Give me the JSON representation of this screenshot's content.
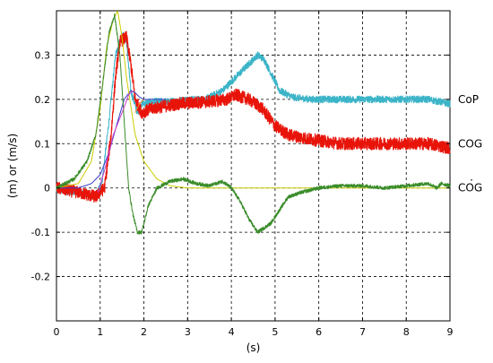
{
  "chart_data": {
    "type": "line",
    "xlabel": "(s)",
    "ylabel": "(m) or (m/s)",
    "xlim": [
      0,
      9
    ],
    "ylim": [
      -0.3,
      0.4
    ],
    "grid": true,
    "x_ticks": [
      "0",
      "1",
      "2",
      "3",
      "4",
      "5",
      "6",
      "7",
      "8",
      "9"
    ],
    "y_ticks": [
      "-0.2",
      "-0.1",
      "0",
      "0.1",
      "0.2",
      "0.3"
    ],
    "x_tick_values": [
      0,
      1,
      2,
      3,
      4,
      5,
      6,
      7,
      8,
      9
    ],
    "y_tick_values": [
      -0.2,
      -0.1,
      0,
      0.1,
      0.2,
      0.3
    ],
    "labels": [
      {
        "text": "CoP",
        "y": 0.2
      },
      {
        "text": "COG",
        "y": 0.1
      },
      {
        "text": "COG",
        "y": 0.0,
        "dot": "."
      }
    ],
    "series": [
      {
        "key": "cop",
        "color": "#3cb4c8",
        "noise": 0.008,
        "x": [
          0,
          0.5,
          0.9,
          1.05,
          1.2,
          1.35,
          1.5,
          1.6,
          1.7,
          1.85,
          1.95,
          2.2,
          2.6,
          3.0,
          3.4,
          3.8,
          4.1,
          4.4,
          4.6,
          4.75,
          4.9,
          5.1,
          5.4,
          5.8,
          6.5,
          7.5,
          8.5,
          9.0
        ],
        "y": [
          -0.005,
          -0.01,
          -0.02,
          0.02,
          0.15,
          0.3,
          0.35,
          0.33,
          0.22,
          0.17,
          0.19,
          0.195,
          0.195,
          0.2,
          0.2,
          0.22,
          0.25,
          0.28,
          0.3,
          0.29,
          0.26,
          0.22,
          0.205,
          0.2,
          0.2,
          0.2,
          0.2,
          0.19
        ]
      },
      {
        "key": "cog_red",
        "color": "#e8140a",
        "noise": 0.014,
        "x": [
          0,
          0.5,
          0.9,
          1.1,
          1.25,
          1.35,
          1.45,
          1.6,
          1.7,
          1.8,
          1.95,
          2.2,
          2.8,
          3.5,
          3.9,
          4.1,
          4.4,
          4.7,
          5.0,
          5.3,
          5.8,
          6.5,
          7.5,
          8.5,
          9.0
        ],
        "y": [
          0,
          -0.01,
          -0.02,
          0.0,
          0.12,
          0.25,
          0.33,
          0.34,
          0.28,
          0.2,
          0.17,
          0.18,
          0.19,
          0.195,
          0.2,
          0.21,
          0.2,
          0.18,
          0.14,
          0.12,
          0.11,
          0.1,
          0.1,
          0.1,
          0.09
        ]
      },
      {
        "key": "cog_smooth",
        "color": "#3c3cc8",
        "noise": 0,
        "x": [
          0,
          0.5,
          0.8,
          1.0,
          1.2,
          1.4,
          1.55,
          1.7,
          1.8,
          1.9,
          2.0,
          2.2,
          2.5
        ],
        "y": [
          0,
          0.0,
          0.01,
          0.03,
          0.08,
          0.15,
          0.2,
          0.22,
          0.215,
          0.205,
          0.2,
          0.2,
          0.2
        ]
      },
      {
        "key": "cog_dot",
        "color": "#cccc00",
        "noise": 0,
        "x": [
          0,
          0.5,
          0.8,
          1.0,
          1.15,
          1.3,
          1.4,
          1.5,
          1.6,
          1.8,
          2.0,
          2.3,
          2.6,
          3.0,
          4.0,
          9.0
        ],
        "y": [
          0,
          0.01,
          0.06,
          0.18,
          0.32,
          0.38,
          0.4,
          0.34,
          0.25,
          0.12,
          0.06,
          0.02,
          0.005,
          0.0,
          0.0,
          0.0
        ]
      },
      {
        "key": "cog_vel",
        "color": "#3a8c2a",
        "noise": 0.004,
        "x": [
          0,
          0.4,
          0.7,
          0.9,
          1.05,
          1.2,
          1.33,
          1.45,
          1.55,
          1.65,
          1.75,
          1.85,
          1.95,
          2.1,
          2.3,
          2.6,
          2.9,
          3.2,
          3.5,
          3.8,
          4.0,
          4.2,
          4.4,
          4.6,
          4.75,
          4.9,
          5.1,
          5.3,
          5.6,
          6.0,
          6.5,
          7.0,
          7.5,
          8.0,
          8.5,
          8.7,
          8.8,
          9.0
        ],
        "y": [
          0,
          0.02,
          0.06,
          0.12,
          0.23,
          0.35,
          0.39,
          0.3,
          0.15,
          0.0,
          -0.06,
          -0.1,
          -0.1,
          -0.04,
          0.0,
          0.015,
          0.02,
          0.01,
          0.005,
          0.015,
          0.0,
          -0.03,
          -0.07,
          -0.1,
          -0.09,
          -0.08,
          -0.05,
          -0.02,
          -0.01,
          0.0,
          0.005,
          0.005,
          0.0,
          0.005,
          0.01,
          0.0,
          0.01,
          0.005
        ]
      },
      {
        "key": "magenta",
        "color": "#c83cc8",
        "noise": 0,
        "x": [
          0.95,
          1.1,
          1.3,
          1.5,
          1.65,
          1.75
        ],
        "y": [
          -0.01,
          0.04,
          0.12,
          0.17,
          0.21,
          0.22
        ]
      },
      {
        "key": "orange",
        "color": "#e08a2a",
        "noise": 0,
        "x": [
          1.8,
          1.9,
          2.0
        ],
        "y": [
          0.17,
          0.19,
          0.2
        ]
      }
    ]
  }
}
